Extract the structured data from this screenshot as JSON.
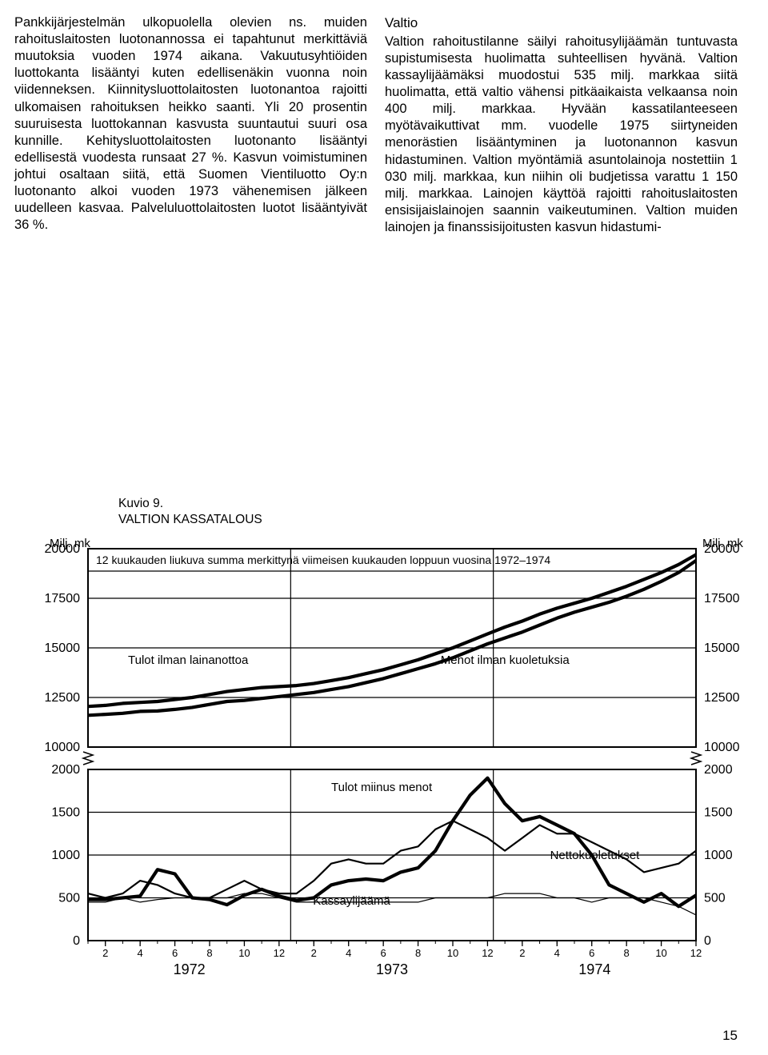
{
  "columns": {
    "left": "Pankkijärjestelmän ulkopuolella olevien ns. muiden rahoituslaitosten luotonannossa ei tapahtunut merkittäviä muutoksia vuoden 1974 aikana. Vakuutusyhtiöiden luottokanta lisääntyi kuten edellisenäkin vuonna noin viidenneksen. Kiinnitysluottolaitosten luotonantoa rajoitti ulkomaisen rahoituksen heikko saanti. Yli 20 prosentin suuruisesta luottokannan kasvusta suuntautui suuri osa kunnille. Kehitysluottolaitosten luotonanto lisääntyi edellisestä vuodesta runsaat 27 %. Kasvun voimistuminen johtui osaltaan siitä, että Suomen Vientiluotto Oy:n luotonanto alkoi vuoden 1973 vähenemisen jälkeen uudelleen kasvaa. Palveluluottolaitosten luotot lisääntyivät 36 %.",
    "right_heading": "Valtio",
    "right": "Valtion rahoitustilanne säilyi rahoitusylijäämän tuntuvasta supistumisesta huolimatta suhteellisen hyvänä. Valtion kassaylijäämäksi muodostui 535 milj. markkaa siitä huolimatta, että valtio vähensi pitkäaikaista velkaansa noin 400 milj. markkaa. Hyvään kassatilanteeseen myötävaikuttivat mm. vuodelle 1975 siirtyneiden menorästien lisääntyminen ja luotonannon kasvun hidastuminen. Valtion myöntämiä asuntolainoja nostettiin 1 030 milj. markkaa, kun niihin oli budjetissa varattu 1 150 milj. markkaa. Lainojen käyttöä rajoitti rahoituslaitosten ensisijaislainojen saannin vaikeutuminen. Valtion muiden lainojen ja finanssisijoitusten kasvun hidastumi-"
  },
  "figure": {
    "number": "Kuvio 9.",
    "title": "VALTION KASSATALOUS",
    "subtitle": "12 kuukauden liukuva summa merkittynä viimeisen kuukauden loppuun vuosina 1972–1974",
    "y_unit_left": "Milj. mk",
    "y_unit_right": "Milj. mk",
    "page_number": "15",
    "colors": {
      "background": "#ffffff",
      "line": "#000000",
      "text": "#000000",
      "frame": "#000000",
      "grid": "#000000"
    },
    "line_width_thin": 1.2,
    "line_width_med": 2.2,
    "line_width_thick": 4.2,
    "fontsize_ticks": 14,
    "fontsize_labels": 16,
    "upper_panel": {
      "ylim": [
        10000,
        20000
      ],
      "yticks": [
        10000,
        12500,
        15000,
        17500,
        20000
      ],
      "label_tulot": "Tulot ilman lainanottoa",
      "label_menot": "Menot ilman kuoletuksia",
      "series_tulot": [
        12050,
        12100,
        12200,
        12250,
        12300,
        12400,
        12500,
        12650,
        12800,
        12900,
        13000,
        13050,
        13100,
        13200,
        13350,
        13500,
        13700,
        13900,
        14150,
        14400,
        14700,
        15000,
        15350,
        15700,
        16050,
        16350,
        16700,
        17000,
        17250,
        17500,
        17800,
        18100,
        18450,
        18800,
        19200,
        19700
      ],
      "series_menot": [
        11600,
        11650,
        11700,
        11800,
        11820,
        11900,
        12000,
        12150,
        12300,
        12350,
        12450,
        12550,
        12650,
        12750,
        12900,
        13050,
        13250,
        13450,
        13700,
        13950,
        14200,
        14500,
        14850,
        15200,
        15500,
        15800,
        16150,
        16500,
        16800,
        17050,
        17300,
        17600,
        17950,
        18350,
        18800,
        19400
      ]
    },
    "lower_panel": {
      "ylim": [
        0,
        2000
      ],
      "yticks": [
        0,
        500,
        1000,
        1500,
        2000
      ],
      "label_diff": "Tulot miinus menot",
      "label_netto": "Nettokuoletukset",
      "label_kassa": "Kassaylijäämä",
      "series_diff": [
        450,
        450,
        500,
        450,
        480,
        500,
        500,
        500,
        500,
        550,
        550,
        500,
        450,
        450,
        450,
        450,
        450,
        450,
        450,
        450,
        500,
        500,
        500,
        500,
        550,
        550,
        550,
        500,
        500,
        450,
        500,
        500,
        500,
        450,
        400,
        300
      ],
      "series_netto": [
        550,
        500,
        550,
        700,
        650,
        550,
        500,
        500,
        600,
        700,
        600,
        550,
        550,
        700,
        900,
        950,
        900,
        900,
        1050,
        1100,
        1300,
        1400,
        1300,
        1200,
        1050,
        1200,
        1350,
        1250,
        1250,
        1150,
        1050,
        950,
        800,
        850,
        900,
        1050
      ],
      "series_kassa": [
        480,
        480,
        500,
        520,
        830,
        780,
        500,
        480,
        420,
        530,
        600,
        520,
        470,
        500,
        650,
        700,
        720,
        700,
        800,
        850,
        1050,
        1400,
        1700,
        1900,
        1600,
        1400,
        1450,
        1350,
        1250,
        1000,
        650,
        550,
        450,
        550,
        400,
        530
      ]
    },
    "x_axis": {
      "years": [
        "1972",
        "1973",
        "1974"
      ],
      "month_ticks": [
        2,
        4,
        6,
        8,
        10,
        12
      ]
    }
  }
}
